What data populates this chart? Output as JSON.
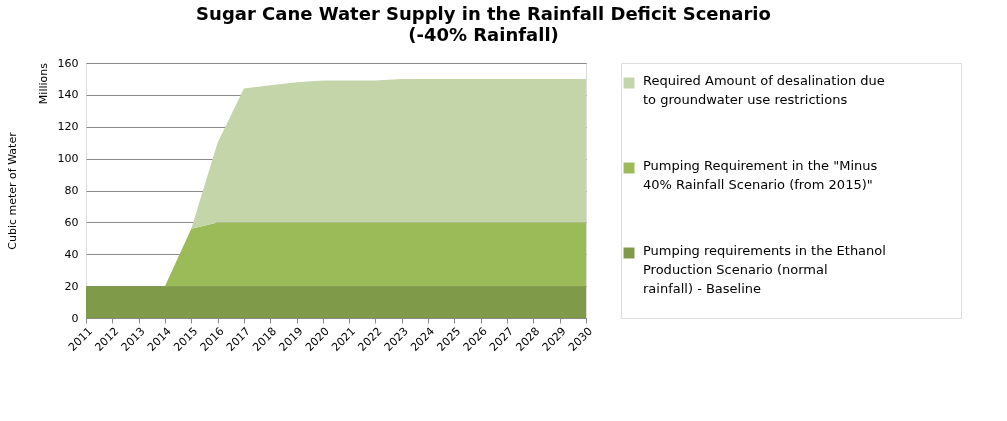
{
  "chart_data": {
    "type": "area",
    "title": "Sugar Cane Water Supply in the Rainfall Deficit Scenario",
    "subtitle": "(-40% Rainfall)",
    "ylabel": "Cubic meter of Water",
    "annotations": [
      "Millions"
    ],
    "categories": [
      "2011",
      "2012",
      "2013",
      "2014",
      "2015",
      "2016",
      "2017",
      "2018",
      "2019",
      "2020",
      "2021",
      "2022",
      "2023",
      "2024",
      "2025",
      "2026",
      "2027",
      "2028",
      "2029",
      "2030"
    ],
    "stacked": true,
    "ylim": [
      0,
      160
    ],
    "yticks": [
      0,
      20,
      40,
      60,
      80,
      100,
      120,
      140,
      160
    ],
    "grid": "y",
    "legend": "right",
    "series": [
      {
        "name": "Pumping requirements in the Ethanol Production Scenario (normal rainfall) - Baseline",
        "color": "#7f9a48",
        "values": [
          20,
          20,
          20,
          20,
          20,
          20,
          20,
          20,
          20,
          20,
          20,
          20,
          20,
          20,
          20,
          20,
          20,
          20,
          20,
          20
        ]
      },
      {
        "name": "Pumping Requirement in the \"Minus 40% Rainfall Scenario (from 2015)\"",
        "color": "#9bbb59",
        "values": [
          0,
          0,
          0,
          0,
          36,
          40,
          40,
          40,
          40,
          40,
          40,
          40,
          40,
          40,
          40,
          40,
          40,
          40,
          40,
          40
        ]
      },
      {
        "name": "Required Amount of desalination due to groundwater use restrictions",
        "color": "#c4d5aa",
        "values": [
          0,
          0,
          0,
          0,
          0,
          50,
          84,
          86,
          88,
          89,
          89,
          89,
          90,
          90,
          90,
          90,
          90,
          90,
          90,
          90
        ]
      }
    ]
  }
}
